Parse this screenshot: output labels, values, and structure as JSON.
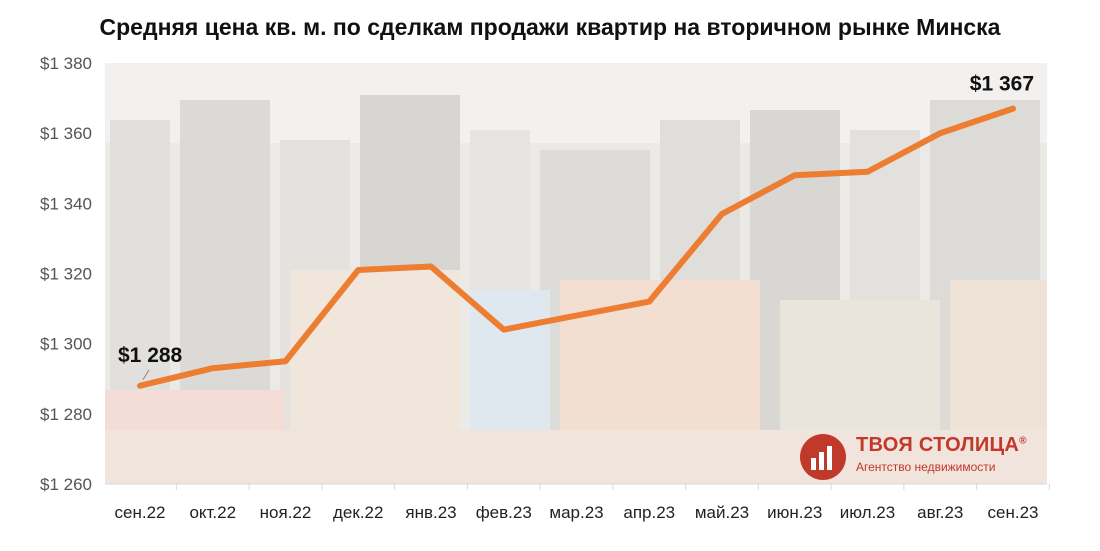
{
  "chart_data": {
    "type": "line",
    "title": "Средняя цена кв. м. по сделкам продажи квартир на вторичном рынке Минска",
    "categories": [
      "сен.22",
      "окт.22",
      "ноя.22",
      "дек.22",
      "янв.23",
      "фев.23",
      "мар.23",
      "апр.23",
      "май.23",
      "июн.23",
      "июл.23",
      "авг.23",
      "сен.23"
    ],
    "series": [
      {
        "values": [
          1288,
          1293,
          1295,
          1321,
          1322,
          1304,
          1308,
          1312,
          1337,
          1348,
          1349,
          1360,
          1367
        ]
      }
    ],
    "ylim": [
      1260,
      1380
    ],
    "y_ticks": [
      1260,
      1280,
      1300,
      1320,
      1340,
      1360,
      1380
    ],
    "y_tick_labels": [
      "$1 260",
      "$1 280",
      "$1 300",
      "$1 320",
      "$1 340",
      "$1 360",
      "$1 380"
    ],
    "annotations": {
      "first": "$1 288",
      "last": "$1 367"
    },
    "line_color": "#ed7d31",
    "grid": false
  },
  "logo": {
    "title": "ТВОЯ СТОЛИЦА",
    "mark": "®",
    "subtitle": "Агентство недвижимости",
    "color": "#c0392b",
    "icon": "building-chart-icon"
  }
}
